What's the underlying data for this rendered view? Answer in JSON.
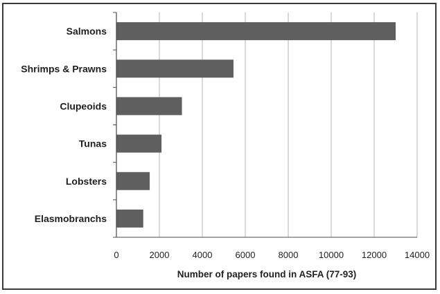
{
  "chart_data": {
    "type": "bar",
    "orientation": "horizontal",
    "categories": [
      "Salmons",
      "Shrimps & Prawns",
      "Clupeoids",
      "Tunas",
      "Lobsters",
      "Elasmobranchs"
    ],
    "values": [
      13000,
      5450,
      3050,
      2100,
      1550,
      1250
    ],
    "xlabel": "Number of papers found in ASFA (77-93)",
    "ylabel": "",
    "xlim": [
      0,
      14000
    ],
    "xticks": [
      0,
      2000,
      4000,
      6000,
      8000,
      10000,
      12000,
      14000
    ],
    "xtick_labels": [
      "0",
      "2000",
      "4000",
      "6000",
      "8000",
      "10000",
      "12000",
      "14000"
    ],
    "grid": "vertical",
    "legend": "none",
    "colors": {
      "bar": "#5f5f5f",
      "grid": "#b5b5b5",
      "axis": "#4a4a4a",
      "frame": "#3a3a3a"
    }
  }
}
